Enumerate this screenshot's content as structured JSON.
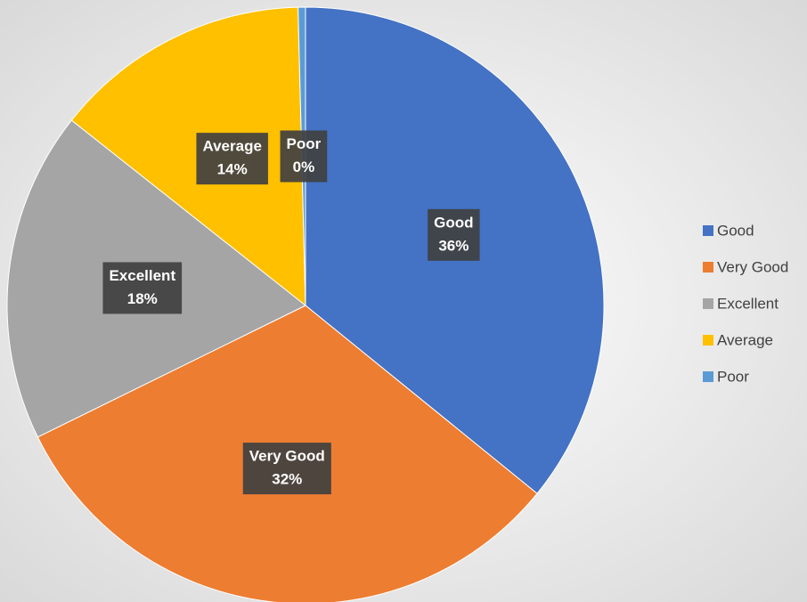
{
  "chart_data": {
    "type": "pie",
    "categories": [
      "Good",
      "Very Good",
      "Excellent",
      "Average",
      "Poor"
    ],
    "values": [
      36,
      32,
      18,
      14,
      0.4
    ],
    "value_labels": [
      "36%",
      "32%",
      "18%",
      "14%",
      "0%"
    ],
    "colors": [
      "#4472c4",
      "#ed7d31",
      "#a5a5a5",
      "#ffc000",
      "#5b9bd5"
    ],
    "legend": "right"
  }
}
